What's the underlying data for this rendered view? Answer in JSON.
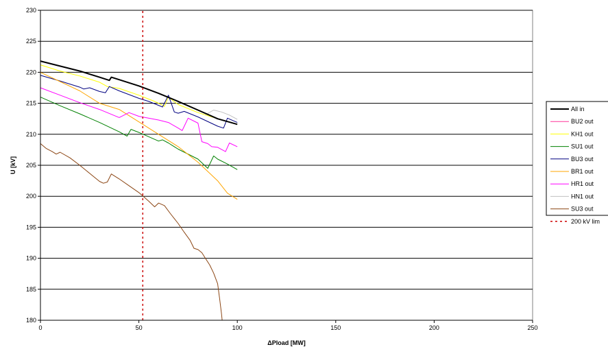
{
  "chart_data": {
    "type": "line",
    "title": "",
    "xlabel": "ΔPload [MW]",
    "ylabel": "U [kV]",
    "xlim": [
      0,
      250
    ],
    "ylim": [
      180,
      230
    ],
    "x_ticks": [
      "0",
      "50",
      "100",
      "150",
      "200",
      "250"
    ],
    "y_ticks": [
      "180",
      "185",
      "190",
      "195",
      "200",
      "205",
      "210",
      "215",
      "220",
      "225",
      "230"
    ],
    "grid": "horizontal",
    "legend_position": "right",
    "series": [
      {
        "name": "All in",
        "color": "#000000",
        "width": 2,
        "points": [
          [
            0,
            221.8
          ],
          [
            10,
            221
          ],
          [
            20,
            220.2
          ],
          [
            30,
            219.2
          ],
          [
            35,
            218.7
          ],
          [
            36,
            219.2
          ],
          [
            40,
            218.8
          ],
          [
            50,
            217.8
          ],
          [
            60,
            216.6
          ],
          [
            70,
            215.3
          ],
          [
            80,
            213.9
          ],
          [
            90,
            212.5
          ],
          [
            100,
            211.6
          ]
        ]
      },
      {
        "name": "BU2 out",
        "color": "#ff3399",
        "width": 1,
        "points": []
      },
      {
        "name": "KH1 out",
        "color": "#ffff00",
        "width": 1,
        "points": [
          [
            0,
            221.2
          ],
          [
            10,
            220.2
          ],
          [
            20,
            219.4
          ],
          [
            30,
            218.4
          ],
          [
            34,
            217.7
          ],
          [
            40,
            217.4
          ],
          [
            50,
            216.3
          ],
          [
            58,
            215.3
          ],
          [
            60,
            215
          ],
          [
            63,
            214.5
          ],
          [
            65,
            216
          ],
          [
            67,
            215.5
          ],
          [
            70,
            214.8
          ],
          [
            80,
            213.5
          ],
          [
            90,
            212.5
          ],
          [
            100,
            211.6
          ]
        ]
      },
      {
        "name": "SU1 out",
        "color": "#008000",
        "width": 1,
        "points": [
          [
            0,
            216
          ],
          [
            10,
            214.6
          ],
          [
            20,
            213.3
          ],
          [
            30,
            211.9
          ],
          [
            40,
            210.4
          ],
          [
            44,
            209.7
          ],
          [
            46,
            210.8
          ],
          [
            50,
            210.3
          ],
          [
            60,
            208.9
          ],
          [
            62,
            209.1
          ],
          [
            65,
            208.6
          ],
          [
            70,
            207.6
          ],
          [
            80,
            206
          ],
          [
            85,
            204.5
          ],
          [
            88,
            206.5
          ],
          [
            90,
            206
          ],
          [
            95,
            205.2
          ],
          [
            100,
            204.3
          ]
        ]
      },
      {
        "name": "BU3 out",
        "color": "#000080",
        "width": 1,
        "points": [
          [
            0,
            219.5
          ],
          [
            10,
            218.6
          ],
          [
            20,
            217.6
          ],
          [
            22,
            217.3
          ],
          [
            25,
            217.5
          ],
          [
            30,
            216.9
          ],
          [
            33,
            216.7
          ],
          [
            35,
            217.7
          ],
          [
            40,
            217
          ],
          [
            50,
            215.8
          ],
          [
            55,
            215.3
          ],
          [
            62,
            214.4
          ],
          [
            65,
            216.3
          ],
          [
            68,
            213.6
          ],
          [
            70,
            213.4
          ],
          [
            73,
            213.7
          ],
          [
            80,
            212.8
          ],
          [
            90,
            211.3
          ],
          [
            93,
            211
          ],
          [
            95,
            212.6
          ],
          [
            100,
            211.9
          ]
        ]
      },
      {
        "name": "BR1 out",
        "color": "#ffa500",
        "width": 1,
        "points": [
          [
            0,
            220
          ],
          [
            10,
            218.5
          ],
          [
            20,
            217
          ],
          [
            30,
            215
          ],
          [
            40,
            214
          ],
          [
            50,
            212
          ],
          [
            60,
            210
          ],
          [
            70,
            208
          ],
          [
            80,
            205.5
          ],
          [
            90,
            202.5
          ],
          [
            95,
            200.5
          ],
          [
            100,
            199.5
          ]
        ]
      },
      {
        "name": "HR1 out",
        "color": "#ff00ff",
        "width": 1,
        "points": [
          [
            0,
            217.5
          ],
          [
            10,
            216.3
          ],
          [
            20,
            215.1
          ],
          [
            30,
            214
          ],
          [
            40,
            212.7
          ],
          [
            45,
            213.5
          ],
          [
            50,
            212.9
          ],
          [
            60,
            212.3
          ],
          [
            65,
            211.9
          ],
          [
            70,
            211
          ],
          [
            72,
            210.6
          ],
          [
            75,
            212.6
          ],
          [
            80,
            211.8
          ],
          [
            82,
            208.8
          ],
          [
            85,
            208.5
          ],
          [
            87,
            208
          ],
          [
            90,
            207.9
          ],
          [
            94,
            207.2
          ],
          [
            96,
            208.6
          ],
          [
            100,
            208
          ]
        ]
      },
      {
        "name": "HN1 out",
        "color": "#c0c0c0",
        "width": 1,
        "points": [
          [
            84,
            213.2
          ],
          [
            88,
            213.9
          ],
          [
            92,
            213.6
          ],
          [
            96,
            213.1
          ],
          [
            100,
            212.4
          ]
        ]
      },
      {
        "name": "SU3 out",
        "color": "#8b4513",
        "width": 1,
        "points": [
          [
            0,
            208.5
          ],
          [
            3,
            207.7
          ],
          [
            6,
            207.2
          ],
          [
            8,
            206.8
          ],
          [
            10,
            207.1
          ],
          [
            15,
            206.2
          ],
          [
            20,
            205
          ],
          [
            25,
            203.7
          ],
          [
            30,
            202.4
          ],
          [
            32,
            202.1
          ],
          [
            34,
            202.3
          ],
          [
            36,
            203.6
          ],
          [
            40,
            202.8
          ],
          [
            45,
            201.7
          ],
          [
            50,
            200.6
          ],
          [
            55,
            199.2
          ],
          [
            58,
            198.3
          ],
          [
            60,
            198.9
          ],
          [
            63,
            198.5
          ],
          [
            66,
            197.2
          ],
          [
            70,
            195.6
          ],
          [
            73,
            194.2
          ],
          [
            76,
            192.9
          ],
          [
            78,
            191.6
          ],
          [
            80,
            191.4
          ],
          [
            82,
            190.9
          ],
          [
            84,
            189.9
          ],
          [
            86,
            188.9
          ],
          [
            88,
            187.6
          ],
          [
            90,
            185.9
          ],
          [
            91,
            183.5
          ],
          [
            92,
            181
          ],
          [
            92.3,
            180
          ]
        ]
      },
      {
        "name": "200 kV lim",
        "color": "#cc0000",
        "width": 1.5,
        "dash": "3,4",
        "points": [
          [
            52,
            180
          ],
          [
            52,
            230
          ]
        ]
      }
    ]
  }
}
